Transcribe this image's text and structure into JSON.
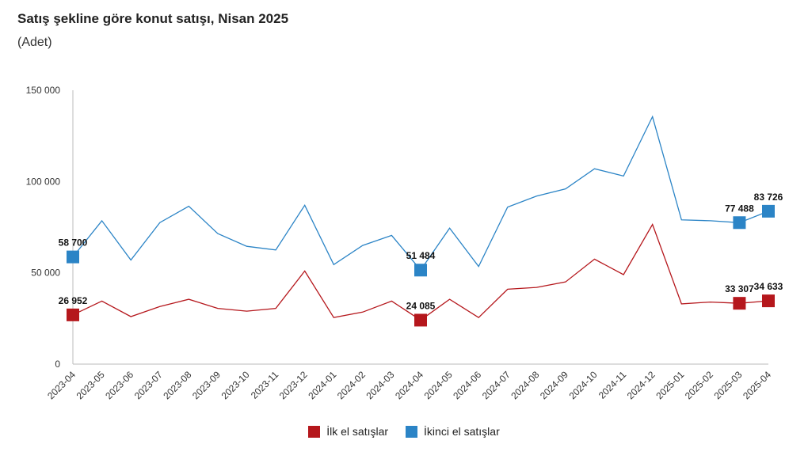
{
  "chart_data": {
    "type": "line",
    "title": "Satış şekline göre konut satışı, Nisan 2025",
    "subtitle": "(Adet)",
    "categories": [
      "2023-04",
      "2023-05",
      "2023-06",
      "2023-07",
      "2023-08",
      "2023-09",
      "2023-10",
      "2023-11",
      "2023-12",
      "2024-01",
      "2024-02",
      "2024-03",
      "2024-04",
      "2024-05",
      "2024-06",
      "2024-07",
      "2024-08",
      "2024-09",
      "2024-10",
      "2024-11",
      "2024-12",
      "2025-01",
      "2025-02",
      "2025-03",
      "2025-04"
    ],
    "ylim": [
      0,
      150000
    ],
    "yticks": [
      0,
      50000,
      100000,
      150000
    ],
    "ytick_labels": [
      "0",
      "50 000",
      "100 000",
      "150 000"
    ],
    "grid": false,
    "legend_position": "bottom",
    "series": [
      {
        "name": "İlk el satışlar",
        "color": "#b5171c",
        "values": [
          26952,
          34500,
          26000,
          31500,
          35500,
          30500,
          29000,
          30500,
          51000,
          25500,
          28500,
          34500,
          24085,
          35500,
          25500,
          41000,
          42000,
          45000,
          57500,
          49000,
          76500,
          33000,
          34000,
          33307,
          34633
        ],
        "labels": [
          {
            "index": 0,
            "text": "26 952"
          },
          {
            "index": 12,
            "text": "24 085"
          },
          {
            "index": 23,
            "text": "33 307"
          },
          {
            "index": 24,
            "text": "34 633"
          }
        ]
      },
      {
        "name": "İkinci el satışlar",
        "color": "#2b84c6",
        "values": [
          58700,
          78500,
          57000,
          77500,
          86500,
          71500,
          64500,
          62500,
          87000,
          54500,
          65000,
          70500,
          51484,
          74500,
          53500,
          86000,
          92000,
          96000,
          107000,
          103000,
          135500,
          79000,
          78500,
          77488,
          83726
        ],
        "labels": [
          {
            "index": 0,
            "text": "58 700"
          },
          {
            "index": 12,
            "text": "51 484"
          },
          {
            "index": 23,
            "text": "77 488"
          },
          {
            "index": 24,
            "text": "83 726"
          }
        ]
      }
    ]
  }
}
